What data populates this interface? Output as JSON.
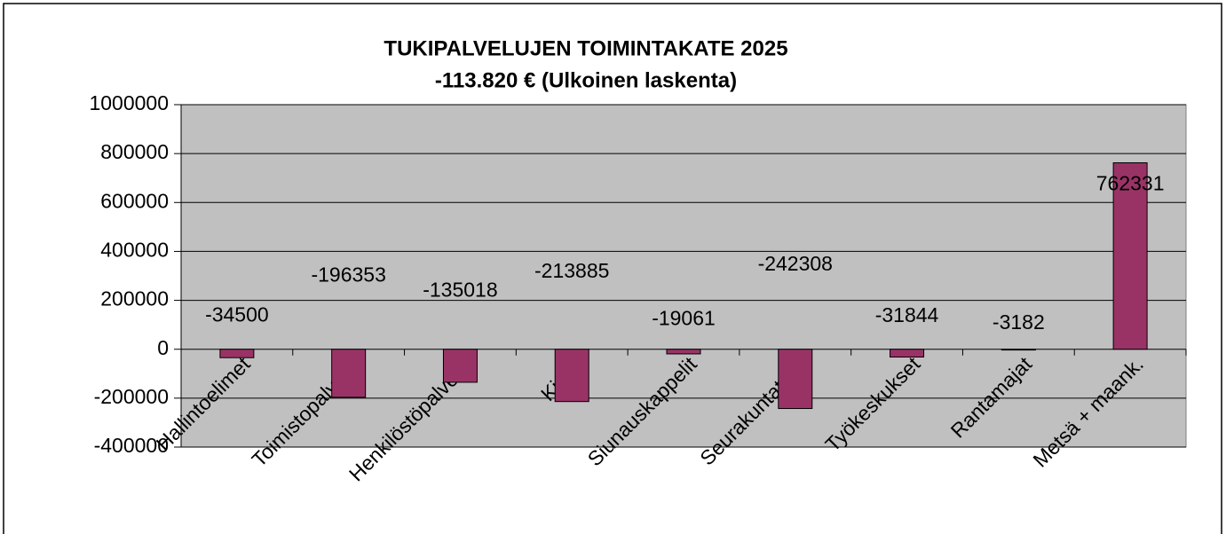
{
  "chart_data": {
    "type": "bar",
    "title": "TUKIPALVELUJEN TOIMINTAKATE 2025",
    "subtitle": "-113.820 € (Ulkoinen laskenta)",
    "categories": [
      "Hallintoelimet",
      "Toimistopalvelut",
      "Henkilöstöpalvelut",
      "Kirkot",
      "Siunauskappelit",
      "Seurakuntatalot",
      "Työkeskukset",
      "Rantamajat",
      "Metsä + maank."
    ],
    "values": [
      -34500,
      -196353,
      -135018,
      -213885,
      -19061,
      -242308,
      -31844,
      -3182,
      762331
    ],
    "color": "#993366",
    "ylim": [
      -400000,
      1000000
    ],
    "yticks": [
      -400000,
      -200000,
      0,
      200000,
      400000,
      600000,
      800000,
      1000000
    ],
    "grid": true
  }
}
